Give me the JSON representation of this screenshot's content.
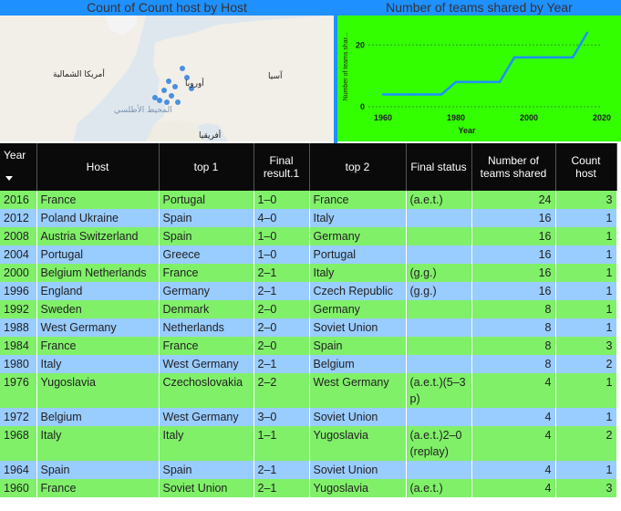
{
  "map": {
    "title": "Count of Count host by Host",
    "labels": {
      "north_america": "أمريكا الشمالية",
      "atlantic": "المحيط الأطلسي",
      "europe": "أوروبا",
      "asia": "آسيا",
      "africa": "أفريقيا"
    }
  },
  "line_chart": {
    "title": "Number of teams shared by Year",
    "ylabel": "Number of teams shar...",
    "xlabel": "Year",
    "color": "#1e90ff"
  },
  "chart_data": {
    "type": "line",
    "title": "Number of teams shared by Year",
    "xlabel": "Year",
    "ylabel": "Number of teams shar...",
    "x": [
      1960,
      1964,
      1968,
      1972,
      1976,
      1980,
      1984,
      1988,
      1992,
      1996,
      2000,
      2004,
      2008,
      2012,
      2016
    ],
    "series": [
      {
        "values": [
          4,
          4,
          4,
          4,
          4,
          8,
          8,
          8,
          8,
          16,
          16,
          16,
          16,
          16,
          24
        ]
      }
    ],
    "xticks": [
      "1960",
      "1980",
      "2000",
      "2020"
    ],
    "yticks": [
      "0",
      "20"
    ],
    "xlim": [
      1956,
      2020
    ],
    "ylim": [
      0,
      26
    ],
    "grid": true
  },
  "table": {
    "headers": [
      "Year",
      "Host",
      "top 1",
      "Final result.1",
      "top 2",
      "Final status",
      "Number of teams shared",
      "Count host"
    ],
    "rows": [
      [
        "2016",
        "France",
        "Portugal",
        "1–0",
        "France",
        "(a.e.t.)",
        "24",
        "3"
      ],
      [
        "2012",
        "Poland Ukraine",
        "Spain",
        "4–0",
        "Italy",
        "",
        "16",
        "1"
      ],
      [
        "2008",
        "Austria  Switzerland",
        "Spain",
        "1–0",
        "Germany",
        "",
        "16",
        "1"
      ],
      [
        "2004",
        "Portugal",
        "Greece",
        "1–0",
        "Portugal",
        "",
        "16",
        "1"
      ],
      [
        "2000",
        "Belgium Netherlands",
        "France",
        "2–1",
        "Italy",
        "(g.g.)",
        "16",
        "1"
      ],
      [
        "1996",
        "England",
        "Germany",
        "2–1",
        "Czech Republic",
        "(g.g.)",
        "16",
        "1"
      ],
      [
        "1992",
        "Sweden",
        "Denmark",
        "2–0",
        "Germany",
        "",
        "8",
        "1"
      ],
      [
        "1988",
        "West Germany",
        "Netherlands",
        "2–0",
        "Soviet Union",
        "",
        "8",
        "1"
      ],
      [
        "1984",
        "France",
        "France",
        "2–0",
        "Spain",
        "",
        "8",
        "3"
      ],
      [
        "1980",
        "Italy",
        "West Germany",
        "2–1",
        "Belgium",
        "",
        "8",
        "2"
      ],
      [
        "1976",
        "Yugoslavia",
        "Czechoslovakia",
        "2–2",
        "West Germany",
        "(a.e.t.)(5–3 p)",
        "4",
        "1"
      ],
      [
        "1972",
        "Belgium",
        "West Germany",
        "3–0",
        "Soviet Union",
        "",
        "4",
        "1"
      ],
      [
        "1968",
        "Italy",
        "Italy",
        "1–1",
        "Yugoslavia",
        "(a.e.t.)2–0 (replay)",
        "4",
        "2"
      ],
      [
        "1964",
        "Spain",
        "Spain",
        "2–1",
        "Soviet Union",
        "",
        "4",
        "1"
      ],
      [
        "1960",
        "France",
        "Soviet Union",
        "2–1",
        "Yugoslavia",
        "(a.e.t.)",
        "4",
        "3"
      ]
    ]
  }
}
